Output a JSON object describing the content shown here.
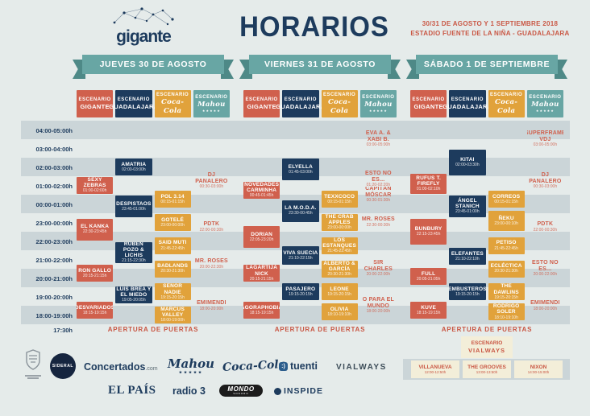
{
  "header": {
    "logo_text": "gigante",
    "title": "HORARIOS",
    "info_line1": "30/31 DE AGOSTO Y 1 SEPTIEMBRE 2018",
    "info_line2": "ESTADIO FUENTE DE LA NIÑA - GUADALAJARA"
  },
  "colors": {
    "background": "#e5ebea",
    "stripe": "#cbd5d8",
    "stage_gigante": "#d0604d",
    "stage_guadalajara": "#1d3b5d",
    "stage_cocacola": "#e1a23b",
    "stage_mahou_banner": "#68a6a4",
    "ribbon_teal": "#68a6a4",
    "accent_red": "#c95643",
    "cream": "#f3eed9"
  },
  "schedule": {
    "escenario_label": "ESCENARIO",
    "doors_time": "17:30h",
    "doors_label": "APERTURA DE PUERTAS",
    "time_rows": [
      "04:00-05:00h",
      "03:00-04:00h",
      "02:00-03:00h",
      "01:00-02:00h",
      "00:00-01:00h",
      "23:00-00:00h",
      "22:00-23:00h",
      "21:00-22:00h",
      "20:00-21:00h",
      "19:00-20:00h",
      "18:00-19:00h"
    ],
    "days": [
      {
        "banner": "JUEVES 30 DE AGOSTO",
        "stages": [
          {
            "id": "gigante",
            "name": "GIGANTE",
            "acts": [
              {
                "name": "SEXY ZEBRAS",
                "time": "01:00-02:00h"
              },
              {
                "name": "EL KANKA",
                "time": "22:30-23:45h"
              },
              {
                "name": "RON GALLO",
                "time": "20:15-21:15h"
              },
              {
                "name": "DESVARIADOS",
                "time": "18:15-19:15h"
              }
            ]
          },
          {
            "id": "guadalajara",
            "name": "GUADALAJARA",
            "acts": [
              {
                "name": "AMATRIA",
                "time": "02:00-03:00h"
              },
              {
                "name": "DESPISTAOS",
                "time": "23:45-01:00h"
              },
              {
                "name": "RUBÉN POZO & LICHIS",
                "time": "21:15-22:30h"
              },
              {
                "name": "LUIS BREA Y EL MIEDO",
                "time": "19:05-20:05h"
              }
            ]
          },
          {
            "id": "cocacola",
            "name": "Coca-Cola",
            "acts": [
              {
                "name": "POL 3.14",
                "time": "00:15-01:15h"
              },
              {
                "name": "GOTELÉ",
                "time": "23:00-00:00h"
              },
              {
                "name": "SAID MUTI",
                "time": "21:45-22:45h"
              },
              {
                "name": "BADLANDS",
                "time": "20:30-21:30h"
              },
              {
                "name": "SEÑOR NADIE",
                "time": "19:15-20:15h"
              },
              {
                "name": "MARCUS VALLEY",
                "time": "18:00-19:00h"
              }
            ]
          },
          {
            "id": "mahou",
            "name": "Mahou",
            "stars": "★★★★★",
            "acts": [
              {
                "name": "DJ PANALERO",
                "time": "00:30-03:00h"
              },
              {
                "name": "PDTK",
                "time": "22:00-00:30h"
              },
              {
                "name": "MR. ROSES",
                "time": "20:00-22:30h"
              },
              {
                "name": "EMIMENDI",
                "time": "18:00-20:00h"
              }
            ]
          }
        ]
      },
      {
        "banner": "VIERNES 31 DE AGOSTO",
        "stages": [
          {
            "id": "gigante",
            "name": "GIGANTE",
            "acts": [
              {
                "name": "NOVEDADES CARMINHA",
                "time": "00:45-01:45h"
              },
              {
                "name": "DORIAN",
                "time": "22:05-23:20h"
              },
              {
                "name": "LAGARTIJA NICK",
                "time": "20:15-21:15h"
              },
              {
                "name": "AGORAPHOBIA",
                "time": "18:15-19:15h"
              }
            ]
          },
          {
            "id": "guadalajara",
            "name": "GUADALAJARA",
            "acts": [
              {
                "name": "ELYELLA",
                "time": "01:45-03:00h"
              },
              {
                "name": "LA M.O.D.A.",
                "time": "23:30-00:45h"
              },
              {
                "name": "VIVA SUECIA",
                "time": "21:10-22:15h"
              },
              {
                "name": "PASAJERO",
                "time": "19:15-20:15h"
              }
            ]
          },
          {
            "id": "cocacola",
            "name": "Coca-Cola",
            "acts": [
              {
                "name": "TEXXCOCO",
                "time": "00:15-01:15h"
              },
              {
                "name": "THE CRAB APPLES",
                "time": "23:00-00:00h"
              },
              {
                "name": "LOS ESTANQUES",
                "time": "21:45-22:45h"
              },
              {
                "name": "ALBERTO & GARCÍA",
                "time": "20:30-21:30h"
              },
              {
                "name": "LEONE",
                "time": "19:15-20:15h"
              },
              {
                "name": "OLIVIA",
                "time": "18:10-19:10h"
              }
            ]
          },
          {
            "id": "mahou",
            "name": "Mahou",
            "stars": "★★★★★",
            "acts": [
              {
                "name": "EVA A. & XABI B.",
                "time": "03:00-05:00h"
              },
              {
                "name": "ESTO NO ES...",
                "time": "01:20-02:20h"
              },
              {
                "name": "CAPITÁN MÓSCAR",
                "time": "00:30-01:30h"
              },
              {
                "name": "MR. ROSES",
                "time": "22:30-00:30h"
              },
              {
                "name": "SIR CHARLES",
                "time": "20:00-22:00h"
              },
              {
                "name": "O PARA EL MUNDO",
                "time": "18:00-20:00h"
              }
            ]
          }
        ]
      },
      {
        "banner": "SÁBADO 1 DE SEPTIEMBRE",
        "stages": [
          {
            "id": "gigante",
            "name": "GIGANTE",
            "acts": [
              {
                "name": "RUFUS T. FIREFLY",
                "time": "01:00-02:10h"
              },
              {
                "name": "BUNBURY",
                "time": "22:15-23:45h"
              },
              {
                "name": "FULL",
                "time": "20:05-21:05h"
              },
              {
                "name": "KUVE",
                "time": "18:15-19:15h"
              }
            ]
          },
          {
            "id": "guadalajara",
            "name": "GUADALAJARA",
            "acts": [
              {
                "name": "KITAI",
                "time": "02:00-03:30h"
              },
              {
                "name": "ÁNGEL STANICH",
                "time": "23:45-01:00h"
              },
              {
                "name": "ELEFANTES",
                "time": "21:10-22:10h"
              },
              {
                "name": "EMBUSTEROS",
                "time": "19:15-20:15h"
              }
            ]
          },
          {
            "id": "cocacola",
            "name": "Coca-Cola",
            "acts": [
              {
                "name": "CORREOS",
                "time": "00:15-01:15h"
              },
              {
                "name": "ÑEKU",
                "time": "23:00-00:10h"
              },
              {
                "name": "PETISO",
                "time": "21:45-22:45h"
              },
              {
                "name": "ECLÉCTICA",
                "time": "20:30-21:30h"
              },
              {
                "name": "THE DAWLINS",
                "time": "19:15-20:15h"
              },
              {
                "name": "RODRIGO SOLER",
                "time": "18:10-19:10h"
              }
            ]
          },
          {
            "id": "mahou",
            "name": "Mahou",
            "stars": "★★★★★",
            "acts": [
              {
                "name": "SUPERFRAME VDJ",
                "time": "03:00-05:00h"
              },
              {
                "name": "DJ PANALERO",
                "time": "00:30-03:00h"
              },
              {
                "name": "PDTK",
                "time": "22:00-00:30h"
              },
              {
                "name": "ESTO NO ES...",
                "time": "20:00-22:00h"
              },
              {
                "name": "EMIMENDI",
                "time": "18:00-20:00h"
              }
            ]
          }
        ]
      }
    ]
  },
  "extra_stage": {
    "title_line1": "ESCENARIO",
    "title_line2": "VIALWAYS",
    "acts": [
      {
        "name": "VILLANUEVA",
        "time": "12:00-12:50h"
      },
      {
        "name": "THE GROOVES",
        "time": "13:00-13:50h"
      },
      {
        "name": "NIXON",
        "time": "14:00-15:00h"
      }
    ]
  },
  "footer": {
    "sponsors": {
      "sideral": "SIDERAL",
      "concertados": "Concertados",
      "concertados_tld": ".com",
      "mahou": "Mahou",
      "mahou_stars": "★★★★★",
      "cocacola": "Coca-Cola",
      "tuenti": "tuenti",
      "vialways": "VIALWAYS",
      "elpais": "EL PAÍS",
      "radio3": "radio 3",
      "mondo": "MONDO",
      "mondo_sub": "SONORO",
      "inspide": "INSPIDE"
    }
  }
}
